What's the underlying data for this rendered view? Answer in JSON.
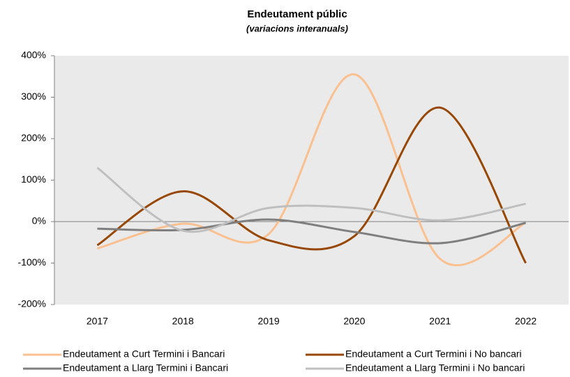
{
  "chart_data": {
    "type": "line",
    "title": "Endeutament públic",
    "subtitle": "(variacions interanuals)",
    "categories": [
      "2017",
      "2018",
      "2019",
      "2020",
      "2021",
      "2022"
    ],
    "series": [
      {
        "name": "Endeutament a Curt Termini i Bancari",
        "color": "#fac090",
        "values": [
          -65,
          -5,
          -30,
          355,
          -90,
          -3
        ]
      },
      {
        "name": "Endeutament a Curt Termini i No bancari",
        "color": "#974706",
        "values": [
          -57,
          73,
          -45,
          -35,
          275,
          -100
        ]
      },
      {
        "name": "Endeutament a Llarg Termini i Bancari",
        "color": "#7f7f7f",
        "values": [
          -17,
          -20,
          5,
          -25,
          -52,
          -3
        ]
      },
      {
        "name": "Endeutament a Llarg Termini i No bancari",
        "color": "#bfbfbf",
        "values": [
          130,
          -22,
          33,
          33,
          3,
          43
        ]
      }
    ],
    "ylim": [
      -200,
      400
    ],
    "yticks": [
      {
        "value": -200,
        "label": "-200%"
      },
      {
        "value": -100,
        "label": "-100%"
      },
      {
        "value": 0,
        "label": "0%"
      },
      {
        "value": 100,
        "label": "100%"
      },
      {
        "value": 200,
        "label": "200%"
      },
      {
        "value": 300,
        "label": "300%"
      },
      {
        "value": 400,
        "label": "400%"
      }
    ],
    "smooth": true,
    "legend": "bottom"
  }
}
